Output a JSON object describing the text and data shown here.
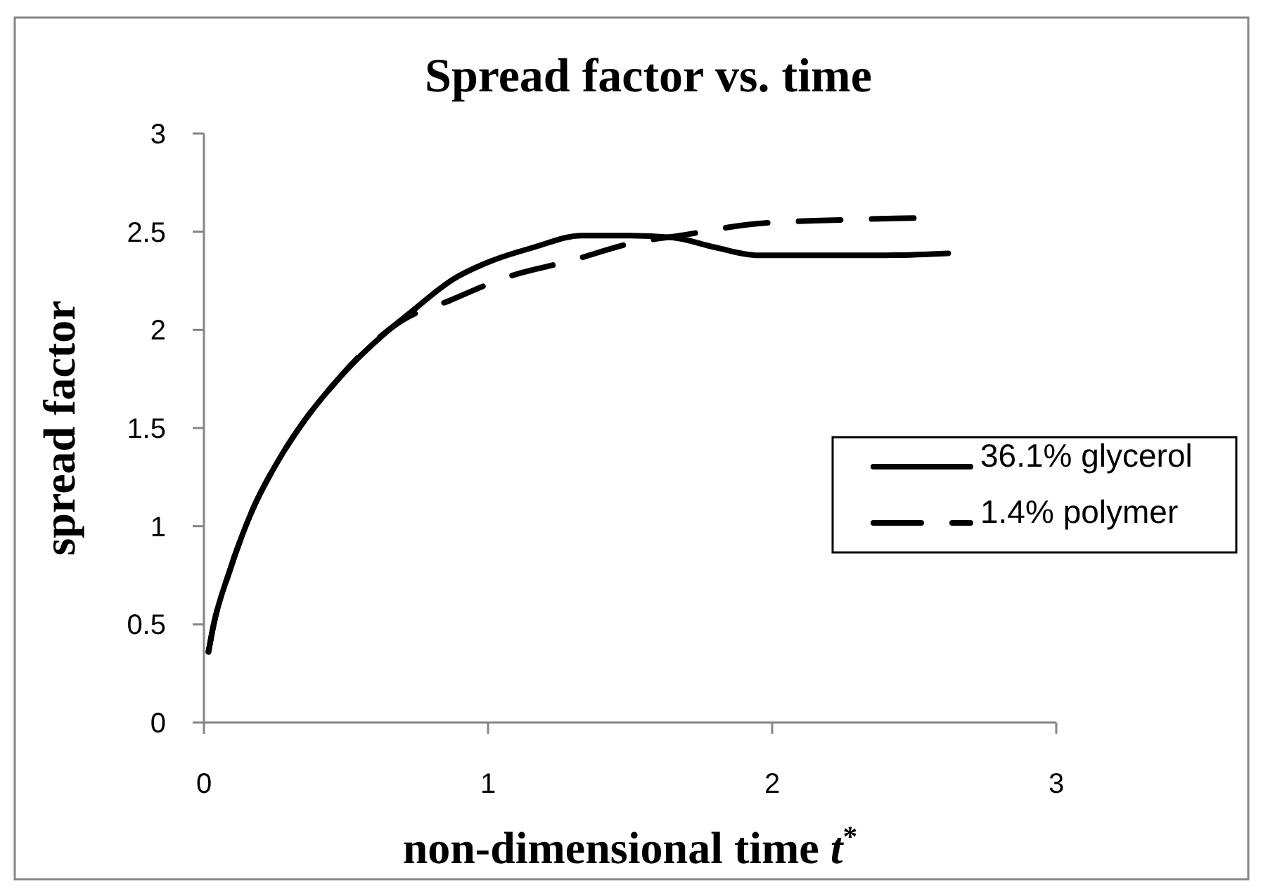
{
  "chart_data": {
    "type": "line",
    "title": "Spread factor vs. time",
    "xlabel": "non-dimensional time t$^{*}$",
    "ylabel": "spread factor",
    "xlim": [
      0,
      3
    ],
    "xticks": [
      0,
      1,
      2,
      3
    ],
    "ylim": [
      0,
      3
    ],
    "yticks": [
      0,
      0.5,
      1,
      1.5,
      2,
      2.5,
      3
    ],
    "legend": "right",
    "series": [
      {
        "name": "36.1% glycerol",
        "color": "#000000",
        "line_style": "solid",
        "x": [
          0.016,
          0.033,
          0.09,
          0.17,
          0.26,
          0.34,
          0.47,
          0.635,
          0.72,
          0.88,
          1.01,
          1.16,
          1.33,
          1.5,
          1.65,
          1.8,
          1.95,
          2.02,
          2.4,
          2.62
        ],
        "values": [
          0.36,
          0.49,
          0.77,
          1.08,
          1.33,
          1.51,
          1.745,
          1.98,
          2.08,
          2.26,
          2.35,
          2.42,
          2.48,
          2.48,
          2.47,
          2.42,
          2.38,
          2.38,
          2.38,
          2.39
        ]
      },
      {
        "name": "1.4% polymer",
        "color": "#000000",
        "line_style": "dashed",
        "x": [
          0.016,
          0.033,
          0.09,
          0.17,
          0.26,
          0.34,
          0.47,
          0.6,
          0.7,
          0.866,
          1.05,
          1.31,
          1.5,
          1.675,
          1.94,
          2.24,
          2.51
        ],
        "values": [
          0.36,
          0.49,
          0.77,
          1.08,
          1.33,
          1.51,
          1.745,
          1.94,
          2.05,
          2.15,
          2.26,
          2.36,
          2.44,
          2.48,
          2.54,
          2.56,
          2.57
        ]
      }
    ]
  }
}
